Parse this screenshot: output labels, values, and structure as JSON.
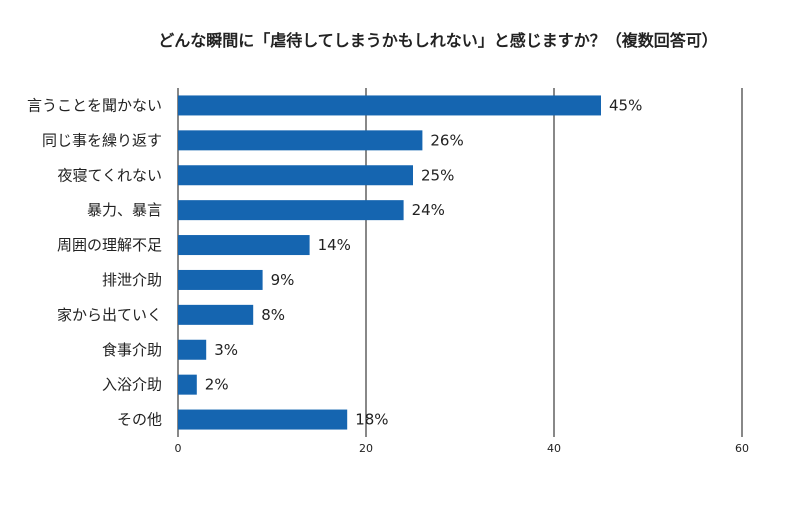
{
  "chart_data": {
    "type": "bar",
    "orientation": "horizontal",
    "title": "どんな瞬間に「虐待してしまうかもしれない」と感じますか？（複数回答可）",
    "categories": [
      "言うことを聞かない",
      "同じ事を繰り返す",
      "夜寝てくれない",
      "暴力、暴言",
      "周囲の理解不足",
      "排泄介助",
      "家から出ていく",
      "食事介助",
      "入浴介助",
      "その他"
    ],
    "values": [
      45,
      26,
      25,
      24,
      14,
      9,
      8,
      3,
      2,
      18
    ],
    "value_labels": [
      "45%",
      "26%",
      "25%",
      "24%",
      "14%",
      "9%",
      "8%",
      "3%",
      "2%",
      "18%"
    ],
    "xlim": [
      0,
      60
    ],
    "xticks": [
      "0",
      "20",
      "40",
      "60"
    ],
    "grid": true,
    "bar_color": "#1565b0"
  }
}
